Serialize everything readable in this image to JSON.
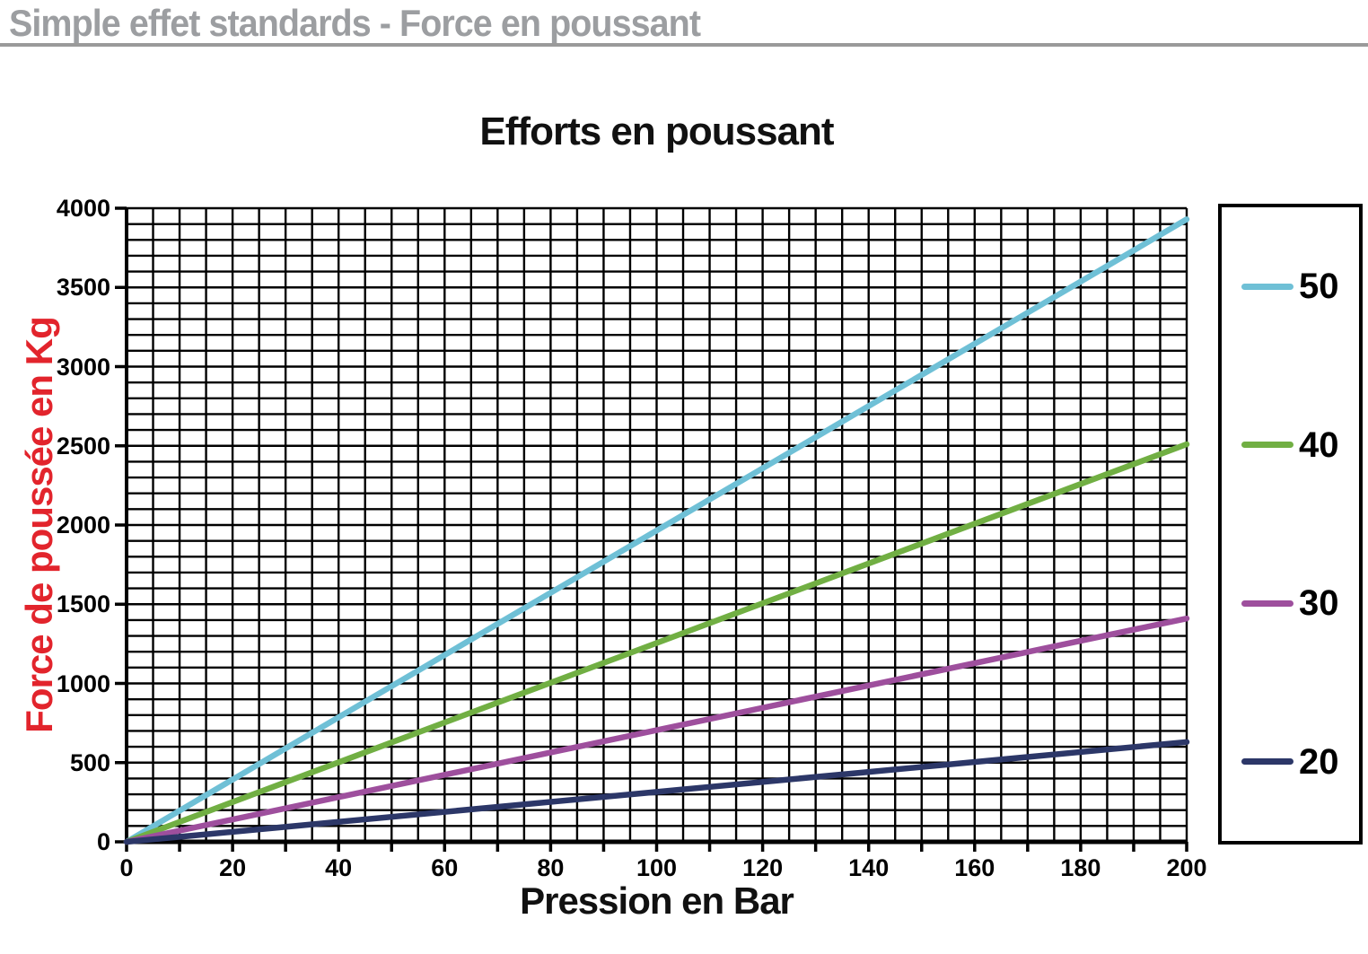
{
  "header": {
    "title": "Simple effet standards - Force en poussant",
    "color": "#9c9ea1",
    "rule_color": "#9a9a9a"
  },
  "chart": {
    "title": "Efforts en poussant",
    "x_axis": {
      "title": "Pression en Bar",
      "tick_labels": [
        "0",
        "20",
        "40",
        "60",
        "80",
        "100",
        "120",
        "140",
        "160",
        "180",
        "200"
      ]
    },
    "y_axis": {
      "title": "Force de poussée en Kg",
      "title_color": "#e2242c",
      "tick_labels": [
        "0",
        "500",
        "1000",
        "1500",
        "2000",
        "2500",
        "3000",
        "3500",
        "4000"
      ]
    }
  },
  "chart_data": {
    "type": "line",
    "title": "Efforts en poussant",
    "xlabel": "Pression en Bar",
    "ylabel": "Force de poussée en Kg",
    "xlim": [
      0,
      200
    ],
    "ylim": [
      0,
      4000
    ],
    "grid": "on",
    "x_grid_step": 5,
    "y_grid_step": 100,
    "x_tick_step": 20,
    "x_minor_tick_step": 10,
    "y_tick_step": 500,
    "legend_position": "right-box",
    "x": [
      0,
      200
    ],
    "series": [
      {
        "name": "50",
        "color": "#6fc0d6",
        "values": [
          0,
          3930
        ]
      },
      {
        "name": "40",
        "color": "#71af43",
        "values": [
          0,
          2510
        ]
      },
      {
        "name": "30",
        "color": "#9e4f9d",
        "values": [
          0,
          1410
        ]
      },
      {
        "name": "20",
        "color": "#2c3768",
        "values": [
          0,
          630
        ]
      }
    ]
  }
}
